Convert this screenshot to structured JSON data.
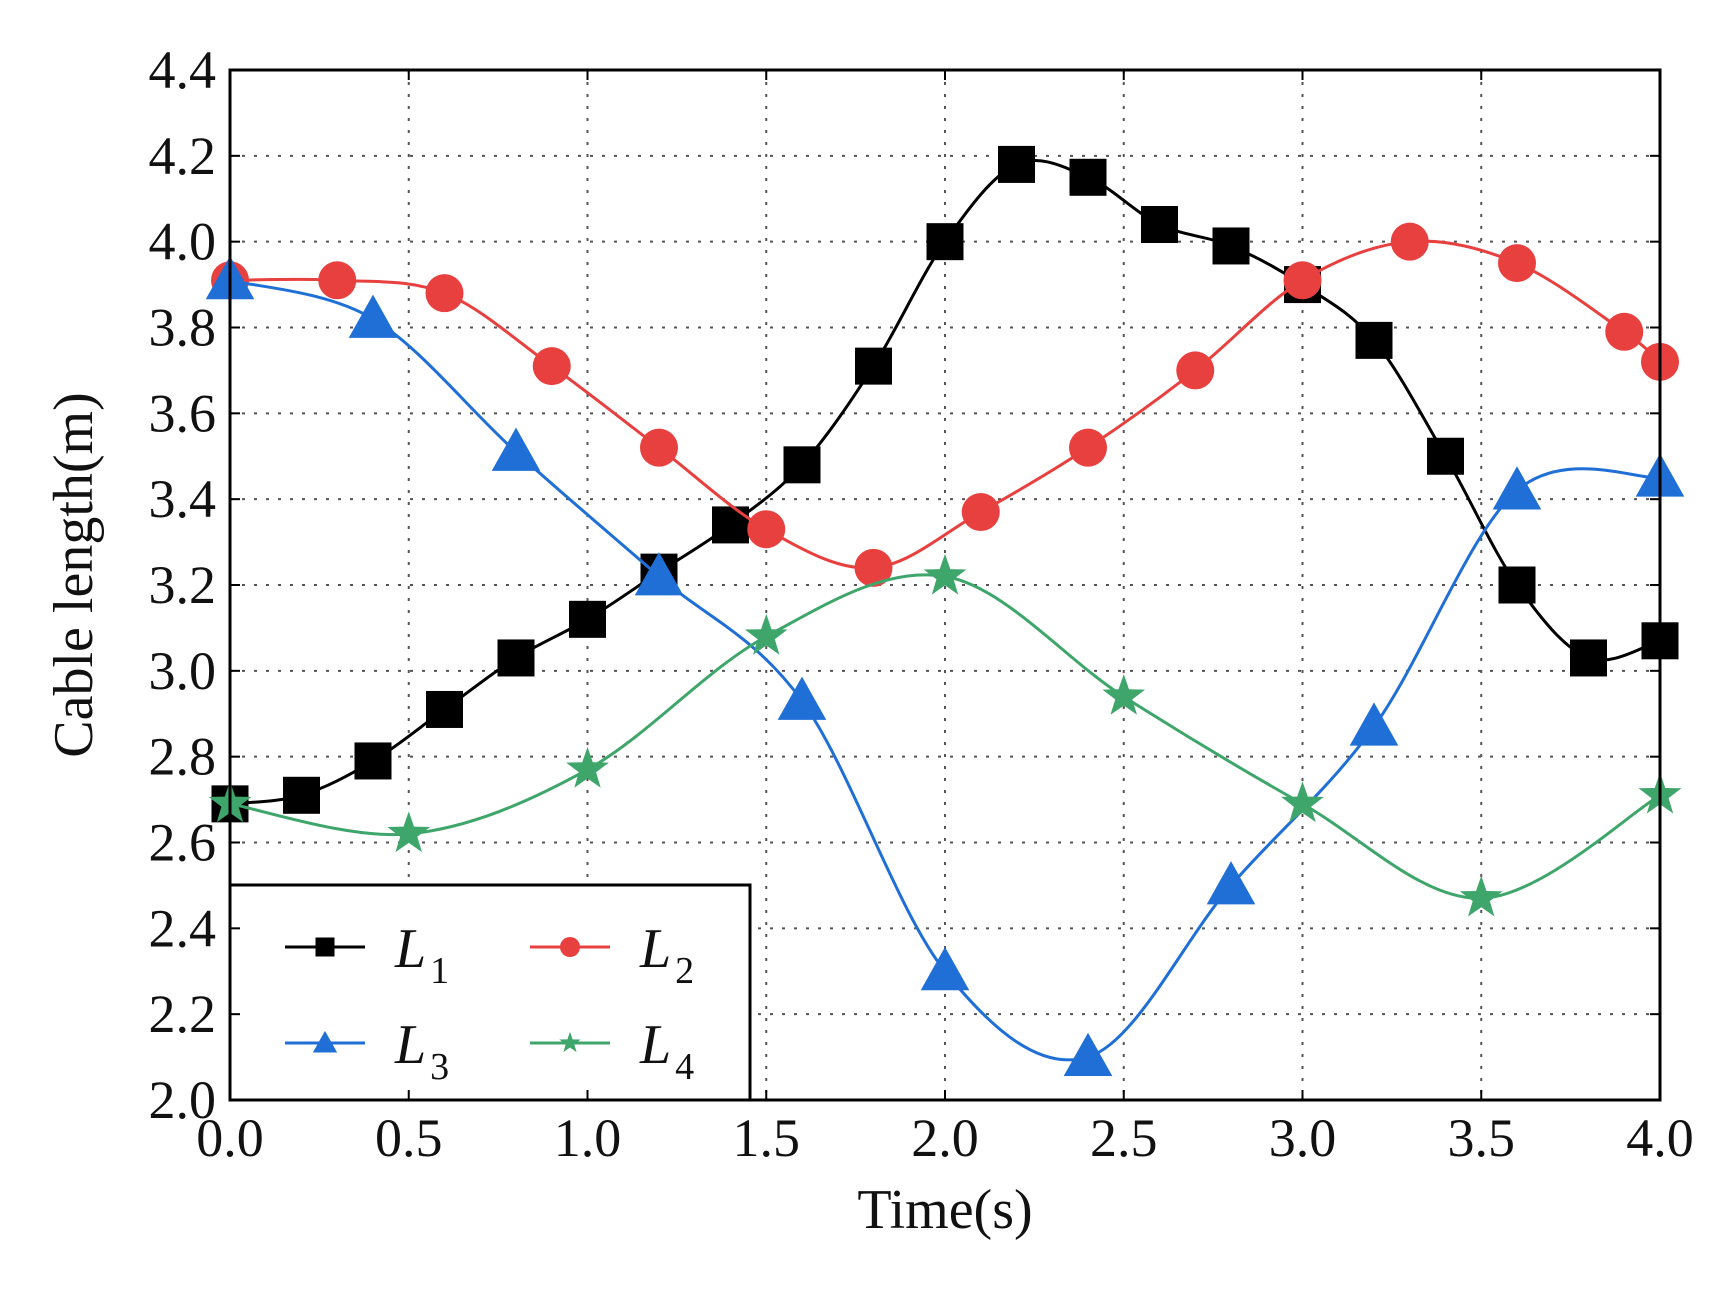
{
  "chart_data": {
    "type": "line",
    "title": "",
    "xlabel": "Time(s)",
    "ylabel": "Cable length(m)",
    "xlim": [
      0,
      4
    ],
    "ylim": [
      2,
      4.4
    ],
    "xticks": [
      "0.0",
      "0.5",
      "1.0",
      "1.5",
      "2.0",
      "2.5",
      "3.0",
      "3.5",
      "4.0"
    ],
    "yticks": [
      "2.0",
      "2.2",
      "2.4",
      "2.6",
      "2.8",
      "3.0",
      "3.2",
      "3.4",
      "3.6",
      "3.8",
      "4.0",
      "4.2",
      "4.4"
    ],
    "grid": true,
    "legend_position": "bottom-left",
    "series": [
      {
        "name": "L",
        "subscript": "1",
        "color": "#000000",
        "marker": "square",
        "x": [
          0.0,
          0.2,
          0.4,
          0.6,
          0.8,
          1.0,
          1.2,
          1.4,
          1.6,
          1.8,
          2.0,
          2.2,
          2.4,
          2.6,
          2.8,
          3.0,
          3.2,
          3.4,
          3.6,
          3.8,
          4.0
        ],
        "values": [
          2.69,
          2.71,
          2.79,
          2.91,
          3.03,
          3.12,
          3.23,
          3.34,
          3.48,
          3.71,
          4.0,
          4.18,
          4.15,
          4.04,
          3.99,
          3.9,
          3.77,
          3.5,
          3.2,
          3.03,
          3.07
        ]
      },
      {
        "name": "L",
        "subscript": "2",
        "color": "#e8403f",
        "marker": "circle",
        "x": [
          0.0,
          0.3,
          0.6,
          0.9,
          1.2,
          1.5,
          1.8,
          2.1,
          2.4,
          2.7,
          3.0,
          3.3,
          3.6,
          3.9,
          4.0
        ],
        "values": [
          3.91,
          3.91,
          3.88,
          3.71,
          3.52,
          3.33,
          3.24,
          3.37,
          3.52,
          3.7,
          3.91,
          4.0,
          3.95,
          3.79,
          3.72
        ]
      },
      {
        "name": "L",
        "subscript": "3",
        "color": "#1f6fd6",
        "marker": "triangle",
        "x": [
          0.0,
          0.4,
          0.8,
          1.2,
          1.6,
          2.0,
          2.4,
          2.8,
          3.2,
          3.6,
          4.0
        ],
        "values": [
          3.91,
          3.82,
          3.51,
          3.22,
          2.93,
          2.3,
          2.1,
          2.5,
          2.87,
          3.42,
          3.45
        ]
      },
      {
        "name": "L",
        "subscript": "4",
        "color": "#3fa66b",
        "marker": "star",
        "x": [
          0.0,
          0.5,
          1.0,
          1.5,
          2.0,
          2.5,
          3.0,
          3.5,
          4.0
        ],
        "values": [
          2.69,
          2.62,
          2.77,
          3.08,
          3.22,
          2.94,
          2.69,
          2.47,
          2.71
        ]
      }
    ]
  }
}
